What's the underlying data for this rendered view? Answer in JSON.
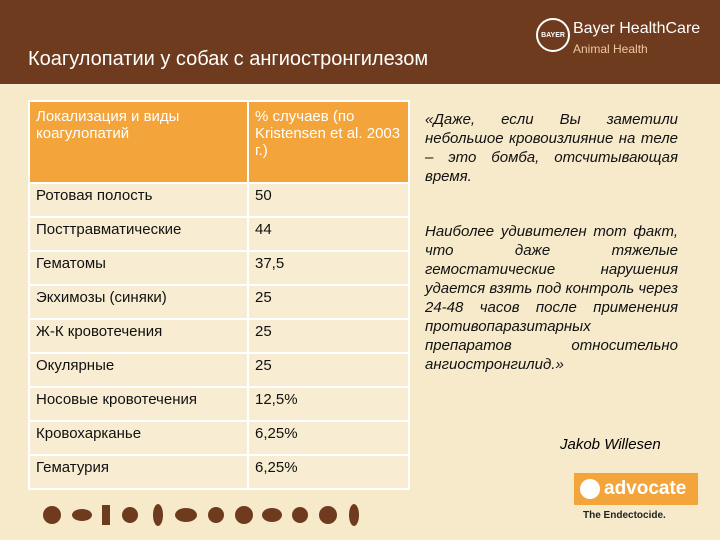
{
  "header": {
    "title": "Коагулопатии у собак с ангиостронгилезом",
    "logo": {
      "emblem": "BAYER",
      "brand": "Bayer HealthCare",
      "division": "Animal Health"
    }
  },
  "table": {
    "columns": [
      "Локализация и виды коагулопатий",
      "% случаев (по Kristensen et al. 2003 г.)"
    ],
    "rows": [
      [
        "Ротовая полость",
        "50"
      ],
      [
        "Посттравматические",
        "44"
      ],
      [
        "Гематомы",
        "37,5"
      ],
      [
        "Экхимозы (синяки)",
        "25"
      ],
      [
        "Ж-К кровотечения",
        "25"
      ],
      [
        "Окулярные",
        "25"
      ],
      [
        "Носовые кровотечения",
        "12,5%"
      ],
      [
        "Кровохарканье",
        "6,25%"
      ],
      [
        "Гематурия",
        "6,25%"
      ]
    ]
  },
  "quote": {
    "text": "«Даже, если Вы заметили небольшое кровоизлияние на теле – это бомба, отсчитывающая время.",
    "body": "Наиболее удивителен тот факт, что даже тяжелые гемостатические нарушения удается взять под контроль через 24-48 часов после применения противопаразитарных препаратов относительно ангиостронгилид.»",
    "author": "Jakob Willesen"
  },
  "product": {
    "name": "advocate",
    "tagline": "The Endectocide."
  }
}
